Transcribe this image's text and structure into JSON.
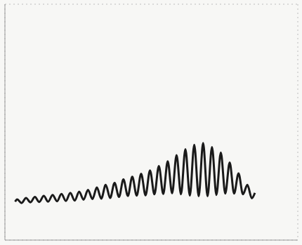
{
  "chart_data": {
    "type": "line",
    "x": [
      1.5,
      1.8,
      2.45,
      3.1,
      3.75,
      4.4,
      5.05,
      5.7,
      6.35,
      7.0,
      7.65,
      8.3,
      8.95,
      9.6,
      10.25,
      10.9,
      11.55,
      12.2,
      12.85,
      13.5,
      14.15,
      14.8,
      15.45,
      16.1,
      16.75,
      17.4,
      18.05,
      18.7,
      19.35,
      20.0,
      20.65,
      21.3,
      21.95,
      22.6,
      23.25,
      23.9,
      24.55,
      25.2,
      25.85,
      26.5,
      27.15,
      27.8,
      28.45,
      29.1,
      29.75,
      30.4,
      31.05,
      31.7,
      32.35,
      33.0,
      33.65,
      34.3,
      34.95,
      35.6,
      36.25,
      36.7
    ],
    "values": [
      5.7,
      6.05,
      5.5,
      6.25,
      5.6,
      6.4,
      5.65,
      6.55,
      5.7,
      6.7,
      5.75,
      6.85,
      5.8,
      7.0,
      5.85,
      7.2,
      6.0,
      7.45,
      6.1,
      7.8,
      6.15,
      8.2,
      6.25,
      8.5,
      6.4,
      9.0,
      6.55,
      9.4,
      6.6,
      9.85,
      6.65,
      10.35,
      6.8,
      11.0,
      6.85,
      11.7,
      6.95,
      12.6,
      6.8,
      13.5,
      6.6,
      14.15,
      6.5,
      14.4,
      6.5,
      13.8,
      6.7,
      13.0,
      6.9,
      11.5,
      6.9,
      9.9,
      6.8,
      8.2,
      6.2,
      7.0
    ],
    "color": "#1a1a1a",
    "xlim": [
      0,
      43
    ],
    "ylim": [
      0,
      35
    ],
    "xticks": [
      0,
      7,
      14,
      21,
      28,
      35,
      42
    ],
    "yticks": [
      0,
      7,
      14,
      21,
      28,
      35
    ],
    "grid": true,
    "tick_labels": false
  }
}
